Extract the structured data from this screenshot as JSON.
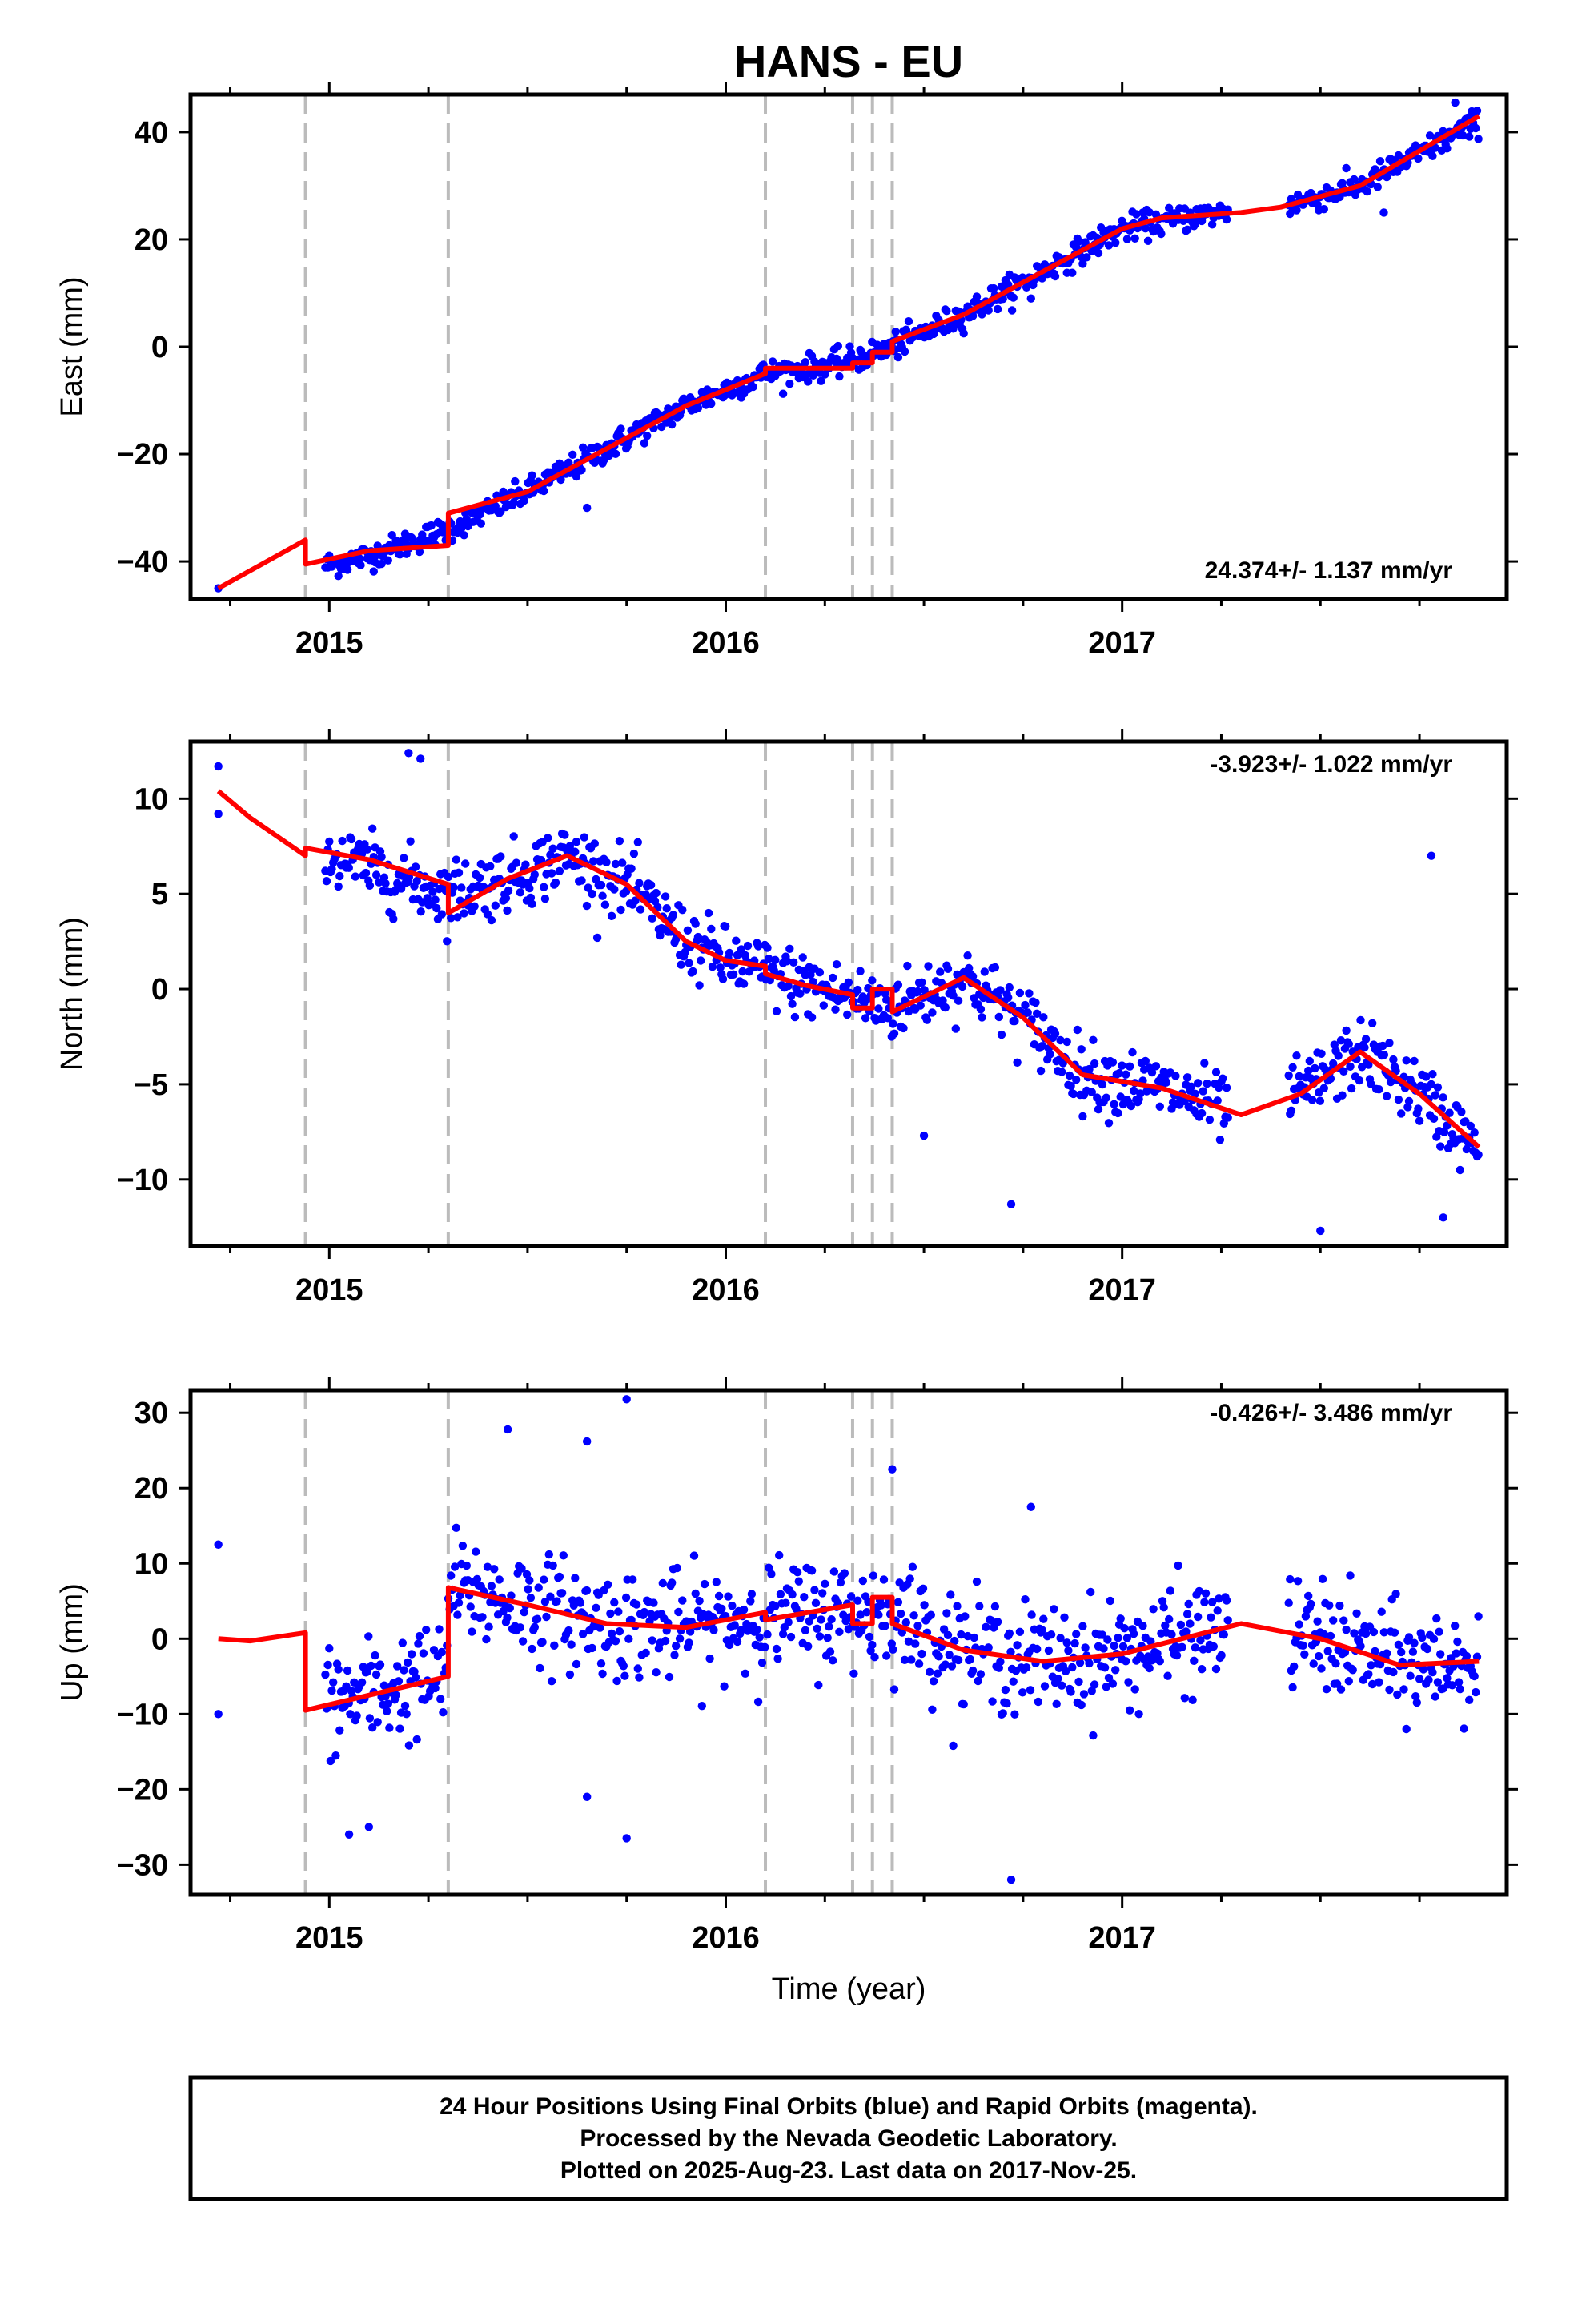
{
  "title": "HANS - EU",
  "xlabel": "Time (year)",
  "caption": [
    "24 Hour Positions Using Final Orbits (blue) and Rapid Orbits (magenta).",
    "Processed by the Nevada Geodetic Laboratory.",
    "Plotted on 2025-Aug-23. Last data on 2017-Nov-25."
  ],
  "colors": {
    "points": "#0000ff",
    "model": "#ff0000",
    "breaks": "#bbbbbb",
    "frame": "#000000"
  },
  "chart_data": [
    {
      "type": "scatter",
      "component": "east",
      "ylabel": "East (mm)",
      "rate_text": "24.374+/- 1.137 mm/yr",
      "xlim": [
        2014.65,
        2017.97
      ],
      "ylim": [
        -47,
        47
      ],
      "xticks": [
        2015,
        2016,
        2017
      ],
      "xtick_labels": [
        "2015",
        "2016",
        "2017"
      ],
      "yticks": [
        -40,
        -20,
        0,
        20,
        40
      ],
      "ytick_labels": [
        "−40",
        "−20",
        "0",
        "20",
        "40"
      ],
      "breaks": [
        2014.94,
        2015.3,
        2016.1,
        2016.32,
        2016.37,
        2016.42
      ],
      "model": [
        [
          2014.72,
          -45
        ],
        [
          2014.94,
          -36
        ],
        [
          2014.94,
          -40.5
        ],
        [
          2015.1,
          -38
        ],
        [
          2015.3,
          -37
        ],
        [
          2015.3,
          -31
        ],
        [
          2015.5,
          -27
        ],
        [
          2015.7,
          -19
        ],
        [
          2015.9,
          -11
        ],
        [
          2016.1,
          -5
        ],
        [
          2016.1,
          -4
        ],
        [
          2016.32,
          -4
        ],
        [
          2016.32,
          -3
        ],
        [
          2016.37,
          -3
        ],
        [
          2016.37,
          -1
        ],
        [
          2016.42,
          -1
        ],
        [
          2016.42,
          1
        ],
        [
          2016.6,
          6
        ],
        [
          2016.8,
          14
        ],
        [
          2017.0,
          22
        ],
        [
          2017.1,
          24
        ],
        [
          2017.3,
          25
        ],
        [
          2017.4,
          26
        ],
        [
          2017.6,
          30
        ],
        [
          2017.9,
          43
        ]
      ],
      "trend": [
        [
          2014.72,
          -45
        ],
        [
          2015.1,
          -39
        ],
        [
          2015.3,
          -34
        ],
        [
          2015.5,
          -27
        ],
        [
          2015.7,
          -19
        ],
        [
          2015.9,
          -11
        ],
        [
          2016.1,
          -5
        ],
        [
          2016.3,
          -3
        ],
        [
          2016.42,
          0
        ],
        [
          2016.6,
          6
        ],
        [
          2016.8,
          14
        ],
        [
          2017.0,
          22
        ],
        [
          2017.2,
          24.5
        ],
        [
          2017.4,
          26
        ],
        [
          2017.6,
          30
        ],
        [
          2017.9,
          42
        ]
      ],
      "noise": 2.2,
      "outliers": [
        [
          2014.72,
          -45
        ],
        [
          2017.84,
          45.5
        ],
        [
          2017.66,
          25
        ],
        [
          2015.65,
          -30
        ],
        [
          2016.77,
          9
        ]
      ]
    },
    {
      "type": "scatter",
      "component": "north",
      "ylabel": "North (mm)",
      "rate_text": "-3.923+/- 1.022 mm/yr",
      "xlim": [
        2014.65,
        2017.97
      ],
      "ylim": [
        -13.5,
        13
      ],
      "xticks": [
        2015,
        2016,
        2017
      ],
      "xtick_labels": [
        "2015",
        "2016",
        "2017"
      ],
      "yticks": [
        -10,
        -5,
        0,
        5,
        10
      ],
      "ytick_labels": [
        "−10",
        "−5",
        "0",
        "5",
        "10"
      ],
      "breaks": [
        2014.94,
        2015.3,
        2016.1,
        2016.32,
        2016.37,
        2016.42
      ],
      "model": [
        [
          2014.72,
          10.4
        ],
        [
          2014.8,
          9.0
        ],
        [
          2014.94,
          7.0
        ],
        [
          2014.94,
          7.4
        ],
        [
          2015.1,
          6.8
        ],
        [
          2015.3,
          5.5
        ],
        [
          2015.3,
          4.0
        ],
        [
          2015.45,
          5.8
        ],
        [
          2015.6,
          7.0
        ],
        [
          2015.75,
          5.5
        ],
        [
          2015.9,
          2.5
        ],
        [
          2016.0,
          1.5
        ],
        [
          2016.1,
          1.2
        ],
        [
          2016.1,
          0.8
        ],
        [
          2016.2,
          0.2
        ],
        [
          2016.32,
          -0.3
        ],
        [
          2016.32,
          -1.0
        ],
        [
          2016.37,
          -1.0
        ],
        [
          2016.37,
          0
        ],
        [
          2016.42,
          0
        ],
        [
          2016.42,
          -1.2
        ],
        [
          2016.6,
          0.6
        ],
        [
          2016.75,
          -1.5
        ],
        [
          2016.9,
          -4.5
        ],
        [
          2017.1,
          -5.2
        ],
        [
          2017.3,
          -6.6
        ],
        [
          2017.45,
          -5.5
        ],
        [
          2017.6,
          -3.3
        ],
        [
          2017.75,
          -5.5
        ],
        [
          2017.9,
          -8.3
        ]
      ],
      "trend": [
        [
          2015.0,
          7.0
        ],
        [
          2015.3,
          5.0
        ],
        [
          2015.45,
          5.8
        ],
        [
          2015.6,
          7.0
        ],
        [
          2015.75,
          5.5
        ],
        [
          2015.9,
          2.5
        ],
        [
          2016.0,
          1.5
        ],
        [
          2016.2,
          0.2
        ],
        [
          2016.42,
          -1.0
        ],
        [
          2016.6,
          0.6
        ],
        [
          2016.75,
          -1.5
        ],
        [
          2016.9,
          -4.5
        ],
        [
          2017.1,
          -5.2
        ],
        [
          2017.3,
          -6.6
        ],
        [
          2017.45,
          -5.5
        ],
        [
          2017.6,
          -3.3
        ],
        [
          2017.75,
          -5.5
        ],
        [
          2017.9,
          -8.5
        ]
      ],
      "noise": 1.6,
      "outliers": [
        [
          2014.72,
          11.7
        ],
        [
          2014.72,
          9.2
        ],
        [
          2015.2,
          12.4
        ],
        [
          2015.23,
          12.1
        ],
        [
          2016.72,
          -11.3
        ],
        [
          2017.5,
          -12.7
        ],
        [
          2017.78,
          7.0
        ],
        [
          2017.81,
          -12.0
        ],
        [
          2016.5,
          -7.7
        ]
      ]
    },
    {
      "type": "scatter",
      "component": "up",
      "ylabel": "Up (mm)",
      "rate_text": "-0.426+/- 3.486 mm/yr",
      "xlim": [
        2014.65,
        2017.97
      ],
      "ylim": [
        -34,
        33
      ],
      "xticks": [
        2015,
        2016,
        2017
      ],
      "xtick_labels": [
        "2015",
        "2016",
        "2017"
      ],
      "yticks": [
        -30,
        -20,
        -10,
        0,
        10,
        20,
        30
      ],
      "ytick_labels": [
        "−30",
        "−20",
        "−10",
        "0",
        "10",
        "20",
        "30"
      ],
      "breaks": [
        2014.94,
        2015.3,
        2016.1,
        2016.32,
        2016.37,
        2016.42
      ],
      "model": [
        [
          2014.72,
          0
        ],
        [
          2014.8,
          -0.3
        ],
        [
          2014.94,
          0.8
        ],
        [
          2014.94,
          -9.5
        ],
        [
          2015.1,
          -7.5
        ],
        [
          2015.3,
          -5
        ],
        [
          2015.3,
          6.8
        ],
        [
          2015.5,
          4.5
        ],
        [
          2015.7,
          2.0
        ],
        [
          2015.9,
          1.5
        ],
        [
          2016.1,
          3.5
        ],
        [
          2016.1,
          2.5
        ],
        [
          2016.32,
          4.5
        ],
        [
          2016.32,
          2.0
        ],
        [
          2016.37,
          2.0
        ],
        [
          2016.37,
          5.5
        ],
        [
          2016.42,
          5.5
        ],
        [
          2016.42,
          2.0
        ],
        [
          2016.6,
          -1.5
        ],
        [
          2016.8,
          -3
        ],
        [
          2017.0,
          -2
        ],
        [
          2017.3,
          2
        ],
        [
          2017.5,
          0
        ],
        [
          2017.7,
          -3.5
        ],
        [
          2017.9,
          -3
        ]
      ],
      "trend": [
        [
          2015.0,
          -8.5
        ],
        [
          2015.3,
          -5
        ],
        [
          2015.3,
          6.8
        ],
        [
          2015.5,
          4.5
        ],
        [
          2015.7,
          2.0
        ],
        [
          2015.9,
          1.5
        ],
        [
          2016.1,
          3.0
        ],
        [
          2016.42,
          3.5
        ],
        [
          2016.6,
          -1.5
        ],
        [
          2016.8,
          -3
        ],
        [
          2017.0,
          -2
        ],
        [
          2017.3,
          2
        ],
        [
          2017.5,
          0
        ],
        [
          2017.7,
          -3.5
        ],
        [
          2017.9,
          -3
        ]
      ],
      "noise": 6.5,
      "outliers": [
        [
          2014.72,
          12.5
        ],
        [
          2014.72,
          -10
        ],
        [
          2015.45,
          27.8
        ],
        [
          2015.65,
          26.2
        ],
        [
          2015.75,
          31.8
        ],
        [
          2015.75,
          -26.5
        ],
        [
          2015.65,
          -21
        ],
        [
          2016.42,
          22.5
        ],
        [
          2016.72,
          -32
        ],
        [
          2016.77,
          17.5
        ],
        [
          2015.1,
          -25
        ],
        [
          2015.05,
          -26
        ]
      ]
    }
  ]
}
